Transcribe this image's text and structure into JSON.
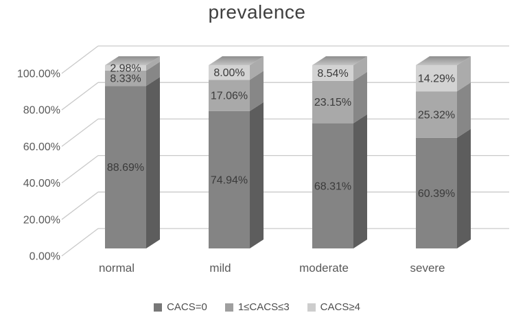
{
  "title": "prevalence",
  "chart_data": {
    "type": "bar",
    "subtype": "3d-stacked-100-percent-column",
    "title": "prevalence",
    "categories": [
      "normal",
      "mild",
      "moderate",
      "severe"
    ],
    "series": [
      {
        "name": "CACS=0",
        "values": [
          88.69,
          74.94,
          68.31,
          60.39
        ]
      },
      {
        "name": "1≤CACS≤3",
        "values": [
          8.33,
          17.06,
          23.15,
          25.32
        ]
      },
      {
        "name": "CACS≥4",
        "values": [
          2.98,
          8.0,
          8.54,
          14.29
        ]
      }
    ],
    "data_labels": [
      [
        "88.69%",
        "74.94%",
        "68.31%",
        "60.39%"
      ],
      [
        "8.33%",
        "17.06%",
        "23.15%",
        "25.32%"
      ],
      [
        "2.98%",
        "8.00%",
        "8.54%",
        "14.29%"
      ]
    ],
    "y_ticks": [
      "0.00%",
      "20.00%",
      "40.00%",
      "60.00%",
      "80.00%",
      "100.00%"
    ],
    "ylim": [
      0,
      100
    ],
    "xlabel": "",
    "ylabel": "",
    "grid": true,
    "legend": [
      "CACS=0",
      "1≤CACS≤3",
      "CACS≥4"
    ],
    "legend_position": "bottom"
  },
  "colors": {
    "background": "#ffffff",
    "title_text": "#3f3f3f",
    "axis_text": "#595959",
    "category_text": "#595959",
    "data_label_text": "#3a3a3a",
    "legend_text": "#4d4d4d",
    "gridline": "#c9c9c9",
    "series_faces": [
      {
        "front": "#848484",
        "side": "#5d5d5d"
      },
      {
        "front": "#a9a9a9",
        "side": "#878787"
      },
      {
        "front": "#d3d3d3",
        "side": "#ababab"
      }
    ],
    "top_face_back": "#8e8e8e",
    "top_face_front": "#c3c3c3",
    "legend_swatches": [
      "#787878",
      "#9f9f9f",
      "#cdcdcd"
    ]
  }
}
